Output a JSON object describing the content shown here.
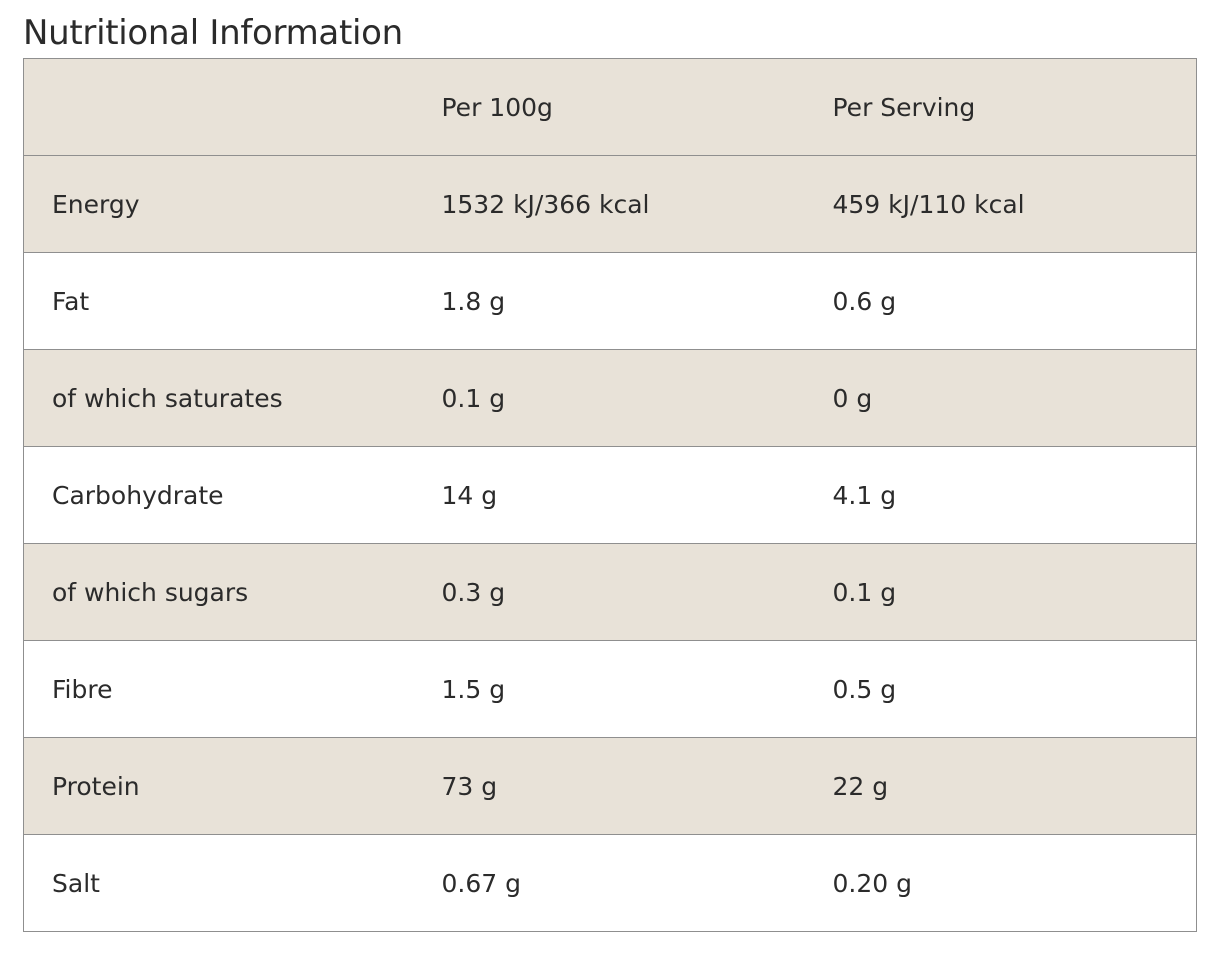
{
  "title": "Nutritional Information",
  "colors": {
    "shaded_row": "#e8e2d8",
    "plain_row": "#ffffff",
    "border": "#8f8f8f",
    "text": "#2b2b2b"
  },
  "table": {
    "headers": [
      "",
      "Per 100g",
      "Per Serving"
    ],
    "rows": [
      {
        "nutrient": "Energy",
        "per_100g": "1532 kJ/366 kcal",
        "per_serving": "459 kJ/110 kcal"
      },
      {
        "nutrient": "Fat",
        "per_100g": "1.8 g",
        "per_serving": "0.6 g"
      },
      {
        "nutrient": "of which saturates",
        "per_100g": "0.1 g",
        "per_serving": "0 g"
      },
      {
        "nutrient": "Carbohydrate",
        "per_100g": "14 g",
        "per_serving": "4.1 g"
      },
      {
        "nutrient": "of which sugars",
        "per_100g": "0.3 g",
        "per_serving": "0.1 g"
      },
      {
        "nutrient": "Fibre",
        "per_100g": "1.5 g",
        "per_serving": "0.5 g"
      },
      {
        "nutrient": "Protein",
        "per_100g": "73 g",
        "per_serving": "22 g"
      },
      {
        "nutrient": "Salt",
        "per_100g": "0.67 g",
        "per_serving": "0.20 g"
      }
    ]
  }
}
